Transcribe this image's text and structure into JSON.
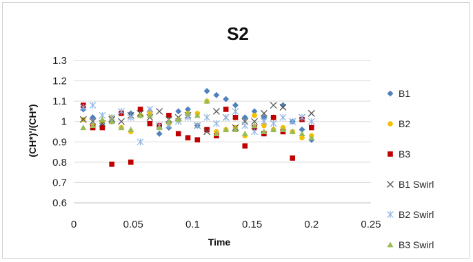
{
  "chart_data": {
    "type": "scatter",
    "title": "S2",
    "xlabel": "Time",
    "ylabel": "(CH*)'/(CH*)",
    "xlim": [
      0,
      0.25
    ],
    "ylim": [
      0.6,
      1.3
    ],
    "xticks": [
      0,
      0.05,
      0.1,
      0.15,
      0.2,
      0.25
    ],
    "xtick_labels": [
      "0",
      "0.05",
      "0.1",
      "0.15",
      "0.2",
      "0.25"
    ],
    "yticks": [
      0.6,
      0.7,
      0.8,
      0.9,
      1,
      1.1,
      1.2,
      1.3
    ],
    "ytick_labels": [
      "0.6",
      "0.7",
      "0.8",
      "0.9",
      "1",
      "1.1",
      "1.2",
      "1.3"
    ],
    "grid": "horizontal",
    "legend_position": "right",
    "series": [
      {
        "name": "B1",
        "marker": "diamond",
        "color": "#4f81bd",
        "x": [
          0.008,
          0.016,
          0.024,
          0.032,
          0.04,
          0.048,
          0.056,
          0.064,
          0.072,
          0.08,
          0.088,
          0.096,
          0.104,
          0.112,
          0.12,
          0.128,
          0.136,
          0.144,
          0.152,
          0.16,
          0.168,
          0.176,
          0.184,
          0.192,
          0.2
        ],
        "y": [
          1.06,
          1.02,
          0.99,
          1.0,
          1.04,
          1.04,
          1.03,
          1.05,
          0.94,
          0.97,
          1.05,
          1.06,
          0.98,
          1.15,
          1.13,
          1.11,
          1.08,
          1.02,
          1.05,
          1.02,
          1.02,
          1.08,
          1.0,
          0.96,
          0.91
        ]
      },
      {
        "name": "B2",
        "marker": "circle",
        "color": "#f5c000",
        "x": [
          0.008,
          0.016,
          0.024,
          0.032,
          0.04,
          0.048,
          0.056,
          0.064,
          0.072,
          0.08,
          0.088,
          0.096,
          0.104,
          0.112,
          0.12,
          0.128,
          0.136,
          0.144,
          0.152,
          0.16,
          0.168,
          0.176,
          0.184,
          0.192,
          0.2
        ],
        "y": [
          1.01,
          0.98,
          1.0,
          1.02,
          0.97,
          0.95,
          1.03,
          1.04,
          0.97,
          0.99,
          1.01,
          1.04,
          1.04,
          1.1,
          0.95,
          0.96,
          0.97,
          0.93,
          1.03,
          0.98,
          0.96,
          0.97,
          0.95,
          0.92,
          0.93
        ]
      },
      {
        "name": "B3",
        "marker": "square",
        "color": "#c00000",
        "x": [
          0.008,
          0.016,
          0.024,
          0.032,
          0.04,
          0.048,
          0.056,
          0.064,
          0.072,
          0.08,
          0.088,
          0.096,
          0.104,
          0.112,
          0.12,
          0.128,
          0.136,
          0.144,
          0.152,
          0.16,
          0.168,
          0.176,
          0.184,
          0.192,
          0.2
        ],
        "y": [
          1.08,
          0.97,
          0.97,
          0.79,
          1.04,
          0.8,
          1.06,
          0.99,
          0.98,
          1.03,
          0.94,
          0.92,
          0.91,
          0.96,
          0.93,
          1.06,
          1.02,
          0.88,
          0.97,
          0.94,
          1.02,
          0.95,
          0.82,
          1.01,
          0.97
        ]
      },
      {
        "name": "B1 Swirl",
        "marker": "x",
        "color": "#555555",
        "x": [
          0.008,
          0.016,
          0.024,
          0.032,
          0.04,
          0.048,
          0.056,
          0.064,
          0.072,
          0.08,
          0.088,
          0.096,
          0.104,
          0.112,
          0.12,
          0.128,
          0.136,
          0.144,
          0.152,
          0.16,
          0.168,
          0.176,
          0.184,
          0.192,
          0.2
        ],
        "y": [
          1.01,
          1.0,
          0.99,
          1.01,
          1.0,
          1.03,
          1.04,
          1.02,
          1.05,
          1.01,
          1.02,
          1.03,
          0.98,
          0.95,
          1.05,
          1.02,
          0.97,
          1.0,
          1.0,
          1.04,
          1.08,
          1.07,
          1.0,
          1.02,
          1.04
        ]
      },
      {
        "name": "B2 Swirl",
        "marker": "asterisk",
        "color": "#8fb4e3",
        "x": [
          0.008,
          0.016,
          0.024,
          0.032,
          0.04,
          0.048,
          0.056,
          0.064,
          0.072,
          0.08,
          0.088,
          0.096,
          0.104,
          0.112,
          0.12,
          0.128,
          0.136,
          0.144,
          0.152,
          0.16,
          0.168,
          0.176,
          0.184,
          0.192,
          0.2
        ],
        "y": [
          1.07,
          1.08,
          1.03,
          1.02,
          1.05,
          1.02,
          0.9,
          1.06,
          0.98,
          0.98,
          1.0,
          1.02,
          0.98,
          1.02,
          0.99,
          1.02,
          1.05,
          0.98,
          0.95,
          1.0,
          0.99,
          1.02,
          1.0,
          1.02,
          1.0
        ]
      },
      {
        "name": "B3 Swirl",
        "marker": "triangle",
        "color": "#9bbb59",
        "x": [
          0.008,
          0.016,
          0.024,
          0.032,
          0.04,
          0.048,
          0.056,
          0.064,
          0.072,
          0.08,
          0.088,
          0.096,
          0.104,
          0.112,
          0.12,
          0.128,
          0.136,
          0.144,
          0.152,
          0.16,
          0.168,
          0.176,
          0.184,
          0.192,
          0.2
        ],
        "y": [
          0.97,
          0.98,
          1.01,
          1.0,
          0.97,
          0.96,
          1.03,
          1.03,
          0.97,
          1.0,
          1.01,
          1.04,
          1.03,
          1.1,
          0.94,
          0.96,
          0.96,
          0.94,
          0.98,
          0.95,
          0.96,
          0.96,
          0.95,
          0.94,
          0.92
        ]
      }
    ]
  }
}
